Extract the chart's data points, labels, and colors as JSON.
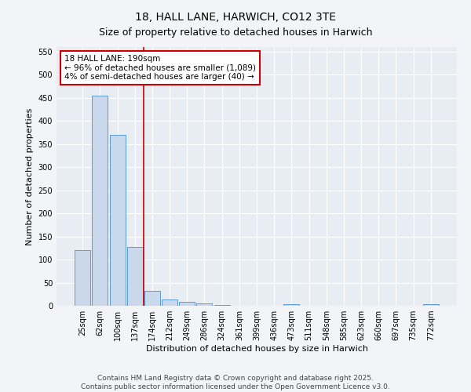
{
  "title_line1": "18, HALL LANE, HARWICH, CO12 3TE",
  "title_line2": "Size of property relative to detached houses in Harwich",
  "xlabel": "Distribution of detached houses by size in Harwich",
  "ylabel": "Number of detached properties",
  "categories": [
    "25sqm",
    "62sqm",
    "100sqm",
    "137sqm",
    "174sqm",
    "212sqm",
    "249sqm",
    "286sqm",
    "324sqm",
    "361sqm",
    "399sqm",
    "436sqm",
    "473sqm",
    "511sqm",
    "548sqm",
    "585sqm",
    "623sqm",
    "660sqm",
    "697sqm",
    "735sqm",
    "772sqm"
  ],
  "values": [
    120,
    455,
    370,
    128,
    33,
    14,
    9,
    5,
    1,
    0,
    0,
    0,
    3,
    0,
    0,
    0,
    0,
    0,
    0,
    0,
    3
  ],
  "bar_color": "#c9d9eb",
  "bar_edge_color": "#5b9bd5",
  "background_color": "#e8edf4",
  "grid_color": "#ffffff",
  "annotation_line1": "18 HALL LANE: 190sqm",
  "annotation_line2": "← 96% of detached houses are smaller (1,089)",
  "annotation_line3": "4% of semi-detached houses are larger (40) →",
  "annotation_box_color": "#ffffff",
  "annotation_box_edge_color": "#cc0000",
  "vline_color": "#cc0000",
  "ylim": [
    0,
    560
  ],
  "yticks": [
    0,
    50,
    100,
    150,
    200,
    250,
    300,
    350,
    400,
    450,
    500,
    550
  ],
  "footer_line1": "Contains HM Land Registry data © Crown copyright and database right 2025.",
  "footer_line2": "Contains public sector information licensed under the Open Government Licence v3.0.",
  "title_fontsize": 10,
  "subtitle_fontsize": 9,
  "axis_label_fontsize": 8,
  "tick_fontsize": 7,
  "annotation_fontsize": 7.5,
  "footer_fontsize": 6.5
}
